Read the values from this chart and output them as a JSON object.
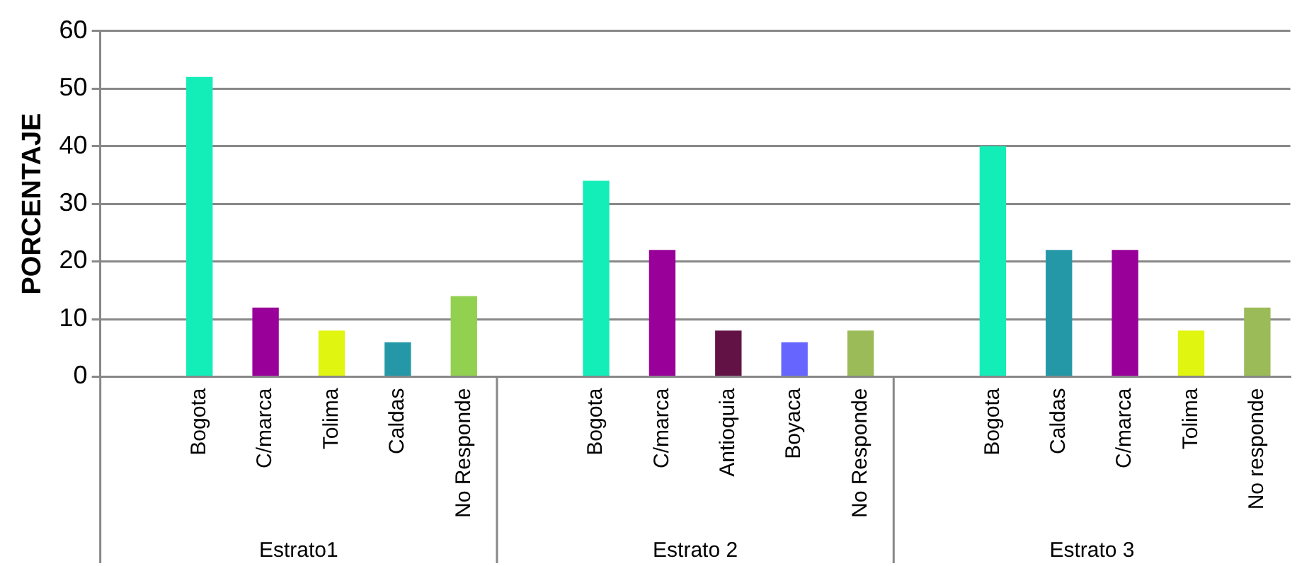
{
  "chart_data": {
    "type": "bar",
    "ylabel": "PORCENTAJE",
    "categories": [
      null,
      "Bogota",
      "C/marca",
      "Tolima",
      "Caldas",
      "No Responde",
      null,
      "Bogota",
      "C/marca",
      "Antioquia",
      "Boyaca",
      "No Responde",
      null,
      "Bogota",
      "Caldas",
      "C/marca",
      "Tolima",
      "No responde"
    ],
    "values": [
      null,
      52,
      12,
      8,
      6,
      14,
      null,
      34,
      22,
      8,
      6,
      8,
      null,
      40,
      22,
      22,
      8,
      12
    ],
    "colors": [
      "#ffffff",
      "#13eeb8",
      "#990099",
      "#e0f50f",
      "#2598a8",
      "#92d050",
      "#ffffff",
      "#13eeb8",
      "#990099",
      "#621244",
      "#6666ff",
      "#9bbb59",
      "#ffffff",
      "#13eeb8",
      "#2598a8",
      "#990099",
      "#e0f50f",
      "#9bbb59"
    ],
    "annotations": [
      "Estrato1",
      "Estrato 2",
      "Estrato 3"
    ],
    "ylim": [
      0,
      60
    ],
    "yticks": [
      0,
      10,
      20,
      30,
      40,
      50,
      60
    ],
    "grid": "y",
    "legend": false
  }
}
